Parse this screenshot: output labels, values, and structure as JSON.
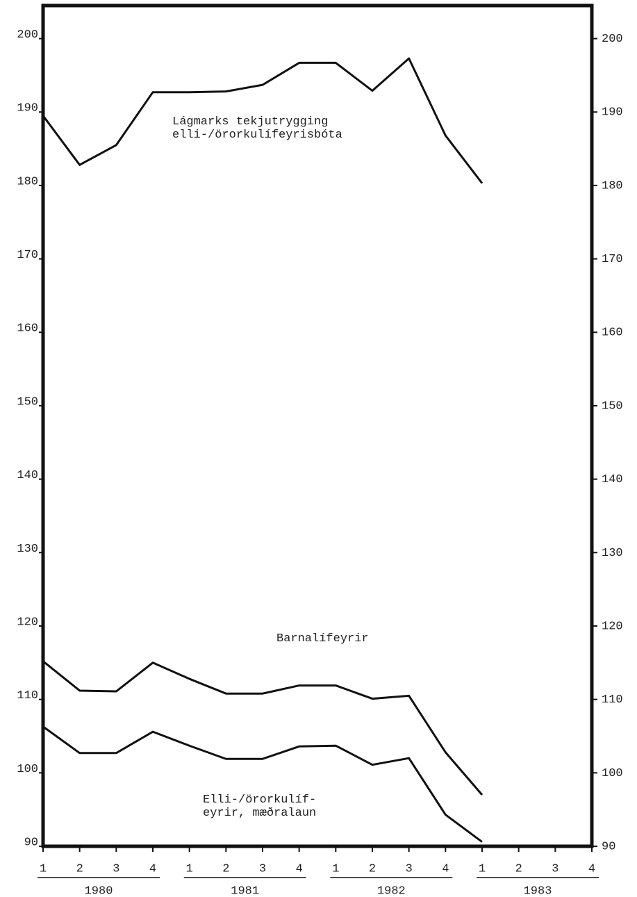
{
  "chart_data": {
    "type": "line",
    "categories": [
      "1",
      "2",
      "3",
      "4",
      "1",
      "2",
      "3",
      "4",
      "1",
      "2",
      "3",
      "4",
      "1",
      "2",
      "3",
      "4"
    ],
    "years": [
      "1980",
      "1981",
      "1982",
      "1983"
    ],
    "series": [
      {
        "name": "Lágmarks tekjutrygging\nelli-/örorkulífeyrisbóta",
        "color": "#111111",
        "values": [
          189.5,
          182.8,
          185.5,
          192.7,
          192.7,
          192.8,
          193.7,
          196.7,
          196.7,
          192.9,
          197.3,
          186.8,
          180.3,
          null,
          null,
          null
        ]
      },
      {
        "name": "Barnalífeyrir",
        "color": "#111111",
        "values": [
          115.2,
          111.2,
          111.1,
          115.0,
          112.8,
          110.8,
          110.8,
          111.9,
          111.9,
          110.1,
          110.5,
          102.8,
          97.0,
          null,
          null,
          null
        ]
      },
      {
        "name": "Elli-/örorkulíf-\neyrir, mæðralaun",
        "color": "#111111",
        "values": [
          106.3,
          102.7,
          102.7,
          105.6,
          103.7,
          101.9,
          101.9,
          103.6,
          103.7,
          101.1,
          102.0,
          94.3,
          90.6,
          null,
          null,
          null
        ]
      }
    ],
    "ylim": [
      90,
      204.5
    ],
    "yticks": [
      90,
      100,
      110,
      120,
      130,
      140,
      150,
      160,
      170,
      180,
      190,
      200
    ]
  }
}
